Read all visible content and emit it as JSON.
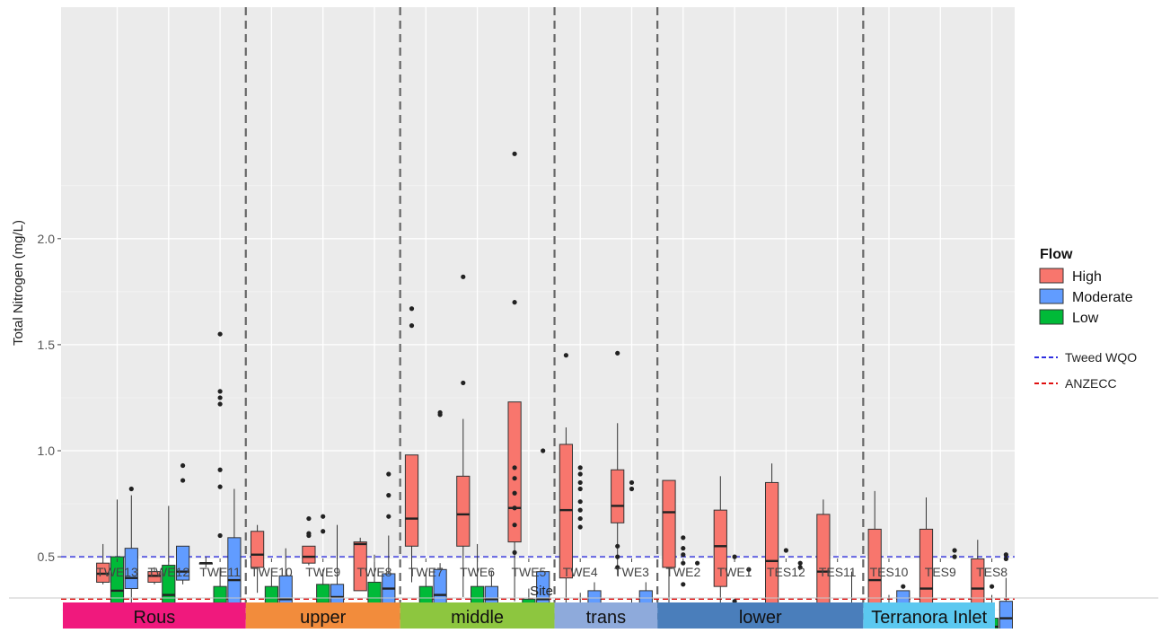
{
  "chart_data": {
    "type": "box",
    "xlabel": "Site",
    "ylabel": "Total Nitrogen (mg/L)",
    "ylim": [
      0.0,
      2.5
    ],
    "y_ticks": [
      0.5,
      1.0,
      1.5,
      2.0
    ],
    "y_tick_labels": [
      "0.5",
      "1.0",
      "1.5",
      "2.0"
    ],
    "grid": true,
    "legend_placement": "right",
    "categories": [
      "TWE13",
      "TWE12",
      "TWE11",
      "TWE10",
      "TWE9",
      "TWE8",
      "TWE7",
      "TWE6",
      "TWE5",
      "TWE4",
      "TWE3",
      "TWE2",
      "TWE1",
      "TES12",
      "TES11",
      "TES10",
      "TES9",
      "TES8"
    ],
    "legend": {
      "title": "Flow",
      "entries": [
        {
          "key": "High",
          "label": "High",
          "color": "#f8766d"
        },
        {
          "key": "Moderate",
          "label": "Moderate",
          "color": "#619cff"
        },
        {
          "key": "Low",
          "label": "Low",
          "color": "#00ba38"
        }
      ]
    },
    "reference_lines": [
      {
        "label": "Tweed WQO",
        "y": 0.5,
        "color": "#3030e0",
        "style": "dashed"
      },
      {
        "label": "ANZECC",
        "y": 0.3,
        "color": "#e01010",
        "style": "dashed"
      }
    ],
    "section_dividers_after": [
      "TWE11",
      "TWE8",
      "TWE5",
      "TWE3",
      "TES11"
    ],
    "zones": [
      {
        "label": "Rous",
        "from": "TWE13",
        "to": "TWE11",
        "color": "#f0197d"
      },
      {
        "label": "upper",
        "from": "TWE10",
        "to": "TWE8",
        "color": "#f28c3c"
      },
      {
        "label": "middle",
        "from": "TWE7",
        "to": "TWE5",
        "color": "#8dc63f"
      },
      {
        "label": "trans",
        "from": "TWE4",
        "to": "TWE3",
        "color": "#8eaadb"
      },
      {
        "label": "lower",
        "from": "TWE2",
        "to": "TES11",
        "color": "#4a7ebb"
      },
      {
        "label": "Terranora Inlet",
        "from": "TES10",
        "to": "TES8",
        "color": "#5bc8f0"
      }
    ],
    "series": [
      {
        "name": "High",
        "boxes": [
          {
            "site": "TWE13",
            "whislo": 0.37,
            "q1": 0.38,
            "med": 0.42,
            "q3": 0.47,
            "whishi": 0.56,
            "outliers": []
          },
          {
            "site": "TWE12",
            "whislo": 0.37,
            "q1": 0.38,
            "med": 0.41,
            "q3": 0.43,
            "whishi": 0.45,
            "outliers": []
          },
          {
            "site": "TWE11",
            "whislo": 0.45,
            "q1": 0.47,
            "med": 0.47,
            "q3": 0.47,
            "whishi": 0.5,
            "outliers": []
          },
          {
            "site": "TWE10",
            "whislo": 0.33,
            "q1": 0.45,
            "med": 0.51,
            "q3": 0.62,
            "whishi": 0.65,
            "outliers": []
          },
          {
            "site": "TWE9",
            "whislo": 0.46,
            "q1": 0.47,
            "med": 0.5,
            "q3": 0.55,
            "whishi": 0.55,
            "outliers": [
              0.68,
              0.61,
              0.6
            ]
          },
          {
            "site": "TWE8",
            "whislo": 0.34,
            "q1": 0.34,
            "med": 0.56,
            "q3": 0.57,
            "whishi": 0.59,
            "outliers": []
          },
          {
            "site": "TWE7",
            "whislo": 0.38,
            "q1": 0.55,
            "med": 0.68,
            "q3": 0.98,
            "whishi": 0.98,
            "outliers": [
              1.67,
              1.59
            ]
          },
          {
            "site": "TWE6",
            "whislo": 0.31,
            "q1": 0.55,
            "med": 0.7,
            "q3": 0.88,
            "whishi": 1.15,
            "outliers": [
              1.82,
              1.32
            ]
          },
          {
            "site": "TWE5",
            "whislo": 0.29,
            "q1": 0.57,
            "med": 0.73,
            "q3": 1.23,
            "whishi": 1.23,
            "outliers": [
              2.4,
              1.7,
              0.92,
              0.87,
              0.8,
              0.73,
              0.65,
              0.52
            ]
          },
          {
            "site": "TWE4",
            "whislo": 0.27,
            "q1": 0.4,
            "med": 0.72,
            "q3": 1.03,
            "whishi": 1.11,
            "outliers": [
              1.45
            ]
          },
          {
            "site": "TWE3",
            "whislo": 0.41,
            "q1": 0.66,
            "med": 0.74,
            "q3": 0.91,
            "whishi": 1.13,
            "outliers": [
              1.46,
              0.55,
              0.5,
              0.45
            ]
          },
          {
            "site": "TWE2",
            "whislo": 0.27,
            "q1": 0.45,
            "med": 0.71,
            "q3": 0.86,
            "whishi": 0.86,
            "outliers": []
          },
          {
            "site": "TWE1",
            "whislo": 0.18,
            "q1": 0.36,
            "med": 0.55,
            "q3": 0.72,
            "whishi": 0.88,
            "outliers": []
          },
          {
            "site": "TES12",
            "whislo": 0.15,
            "q1": 0.15,
            "med": 0.48,
            "q3": 0.85,
            "whishi": 0.94,
            "outliers": []
          },
          {
            "site": "TES11",
            "whislo": 0.14,
            "q1": 0.18,
            "med": 0.43,
            "q3": 0.7,
            "whishi": 0.77,
            "outliers": []
          },
          {
            "site": "TES10",
            "whislo": 0.13,
            "q1": 0.2,
            "med": 0.39,
            "q3": 0.63,
            "whishi": 0.81,
            "outliers": []
          },
          {
            "site": "TES9",
            "whislo": 0.12,
            "q1": 0.12,
            "med": 0.35,
            "q3": 0.63,
            "whishi": 0.78,
            "outliers": []
          },
          {
            "site": "TES8",
            "whislo": 0.23,
            "q1": 0.23,
            "med": 0.35,
            "q3": 0.49,
            "whishi": 0.58,
            "outliers": []
          }
        ]
      },
      {
        "name": "Moderate",
        "boxes": [
          {
            "site": "TWE13",
            "whislo": 0.28,
            "q1": 0.35,
            "med": 0.4,
            "q3": 0.54,
            "whishi": 0.79,
            "outliers": [
              0.82
            ]
          },
          {
            "site": "TWE12",
            "whislo": 0.37,
            "q1": 0.39,
            "med": 0.43,
            "q3": 0.55,
            "whishi": 0.55,
            "outliers": [
              0.93,
              0.86
            ]
          },
          {
            "site": "TWE11",
            "whislo": 0.24,
            "q1": 0.27,
            "med": 0.39,
            "q3": 0.59,
            "whishi": 0.82,
            "outliers": []
          },
          {
            "site": "TWE10",
            "whislo": 0.18,
            "q1": 0.24,
            "med": 0.3,
            "q3": 0.41,
            "whishi": 0.54,
            "outliers": []
          },
          {
            "site": "TWE9",
            "whislo": 0.18,
            "q1": 0.18,
            "med": 0.31,
            "q3": 0.37,
            "whishi": 0.65,
            "outliers": []
          },
          {
            "site": "TWE8",
            "whislo": 0.15,
            "q1": 0.24,
            "med": 0.35,
            "q3": 0.42,
            "whishi": 0.6,
            "outliers": [
              0.89,
              0.79,
              0.69
            ]
          },
          {
            "site": "TWE7",
            "whislo": 0.16,
            "q1": 0.25,
            "med": 0.32,
            "q3": 0.44,
            "whishi": 0.47,
            "outliers": [
              1.18,
              1.17
            ]
          },
          {
            "site": "TWE6",
            "whislo": 0.13,
            "q1": 0.22,
            "med": 0.3,
            "q3": 0.36,
            "whishi": 0.43,
            "outliers": []
          },
          {
            "site": "TWE5",
            "whislo": 0.17,
            "q1": 0.22,
            "med": 0.3,
            "q3": 0.43,
            "whishi": 0.43,
            "outliers": [
              1.0
            ]
          },
          {
            "site": "TWE4",
            "whislo": 0.19,
            "q1": 0.24,
            "med": 0.25,
            "q3": 0.34,
            "whishi": 0.38,
            "outliers": []
          },
          {
            "site": "TWE3",
            "whislo": 0.2,
            "q1": 0.22,
            "med": 0.23,
            "q3": 0.34,
            "whishi": 0.38,
            "outliers": []
          },
          {
            "site": "TWE2",
            "whislo": 0.15,
            "q1": 0.16,
            "med": 0.17,
            "q3": 0.18,
            "whishi": 0.18,
            "outliers": [
              0.47
            ]
          },
          {
            "site": "TWE1",
            "whislo": 0.11,
            "q1": 0.12,
            "med": 0.13,
            "q3": 0.16,
            "whishi": 0.17,
            "outliers": [
              0.44
            ]
          },
          {
            "site": "TES12",
            "whislo": 0.11,
            "q1": 0.11,
            "med": 0.13,
            "q3": 0.16,
            "whishi": 0.17,
            "outliers": [
              0.47,
              0.45
            ]
          },
          {
            "site": "TES11",
            "whislo": 0.12,
            "q1": 0.13,
            "med": 0.14,
            "q3": 0.28,
            "whishi": 0.43,
            "outliers": []
          },
          {
            "site": "TES10",
            "whislo": 0.11,
            "q1": 0.13,
            "med": 0.17,
            "q3": 0.34,
            "whishi": 0.34,
            "outliers": [
              0.36
            ]
          },
          {
            "site": "TES9",
            "whislo": 0.11,
            "q1": 0.13,
            "med": 0.15,
            "q3": 0.2,
            "whishi": 0.27,
            "outliers": [
              0.53,
              0.5
            ]
          },
          {
            "site": "TES8",
            "whislo": 0.1,
            "q1": 0.15,
            "med": 0.21,
            "q3": 0.29,
            "whishi": 0.4,
            "outliers": [
              0.51,
              0.49
            ]
          }
        ]
      },
      {
        "name": "Low",
        "boxes": [
          {
            "site": "TWE13",
            "whislo": 0.22,
            "q1": 0.28,
            "med": 0.34,
            "q3": 0.5,
            "whishi": 0.77,
            "outliers": []
          },
          {
            "site": "TWE12",
            "whislo": 0.22,
            "q1": 0.27,
            "med": 0.32,
            "q3": 0.46,
            "whishi": 0.74,
            "outliers": []
          },
          {
            "site": "TWE11",
            "whislo": 0.12,
            "q1": 0.24,
            "med": 0.28,
            "q3": 0.36,
            "whishi": 0.45,
            "outliers": [
              1.55,
              1.28,
              1.25,
              1.22,
              0.91,
              0.83,
              0.6
            ]
          },
          {
            "site": "TWE10",
            "whislo": 0.16,
            "q1": 0.24,
            "med": 0.27,
            "q3": 0.36,
            "whishi": 0.44,
            "outliers": []
          },
          {
            "site": "TWE9",
            "whislo": 0.15,
            "q1": 0.23,
            "med": 0.28,
            "q3": 0.37,
            "whishi": 0.44,
            "outliers": [
              0.69,
              0.62
            ]
          },
          {
            "site": "TWE8",
            "whislo": 0.17,
            "q1": 0.23,
            "med": 0.27,
            "q3": 0.38,
            "whishi": 0.51,
            "outliers": []
          },
          {
            "site": "TWE7",
            "whislo": 0.16,
            "q1": 0.22,
            "med": 0.26,
            "q3": 0.36,
            "whishi": 0.43,
            "outliers": []
          },
          {
            "site": "TWE6",
            "whislo": 0.15,
            "q1": 0.21,
            "med": 0.25,
            "q3": 0.36,
            "whishi": 0.56,
            "outliers": []
          },
          {
            "site": "TWE5",
            "whislo": 0.15,
            "q1": 0.19,
            "med": 0.23,
            "q3": 0.3,
            "whishi": 0.35,
            "outliers": []
          },
          {
            "site": "TWE4",
            "whislo": 0.15,
            "q1": 0.19,
            "med": 0.23,
            "q3": 0.28,
            "whishi": 0.33,
            "outliers": [
              0.92,
              0.89,
              0.85,
              0.82,
              0.76,
              0.72,
              0.68,
              0.64
            ]
          },
          {
            "site": "TWE3",
            "whislo": 0.13,
            "q1": 0.15,
            "med": 0.21,
            "q3": 0.25,
            "whishi": 0.3,
            "outliers": [
              0.85,
              0.82
            ]
          },
          {
            "site": "TWE2",
            "whislo": 0.07,
            "q1": 0.13,
            "med": 0.16,
            "q3": 0.2,
            "whishi": 0.22,
            "outliers": [
              0.59,
              0.54,
              0.51,
              0.47,
              0.37
            ]
          },
          {
            "site": "TWE1",
            "whislo": 0.1,
            "q1": 0.12,
            "med": 0.14,
            "q3": 0.17,
            "whishi": 0.17,
            "outliers": [
              0.5,
              0.29
            ]
          },
          {
            "site": "TES12",
            "whislo": 0.09,
            "q1": 0.11,
            "med": 0.13,
            "q3": 0.16,
            "whishi": 0.21,
            "outliers": [
              0.53
            ]
          },
          {
            "site": "TES11",
            "whislo": 0.11,
            "q1": 0.13,
            "med": 0.14,
            "q3": 0.19,
            "whishi": 0.19,
            "outliers": []
          },
          {
            "site": "TES10",
            "whislo": 0.11,
            "q1": 0.13,
            "med": 0.16,
            "q3": 0.21,
            "whishi": 0.32,
            "outliers": []
          },
          {
            "site": "TES9",
            "whislo": 0.11,
            "q1": 0.13,
            "med": 0.15,
            "q3": 0.18,
            "whishi": 0.22,
            "outliers": []
          },
          {
            "site": "TES8",
            "whislo": 0.1,
            "q1": 0.14,
            "med": 0.17,
            "q3": 0.21,
            "whishi": 0.32,
            "outliers": [
              0.36
            ]
          }
        ]
      }
    ]
  }
}
